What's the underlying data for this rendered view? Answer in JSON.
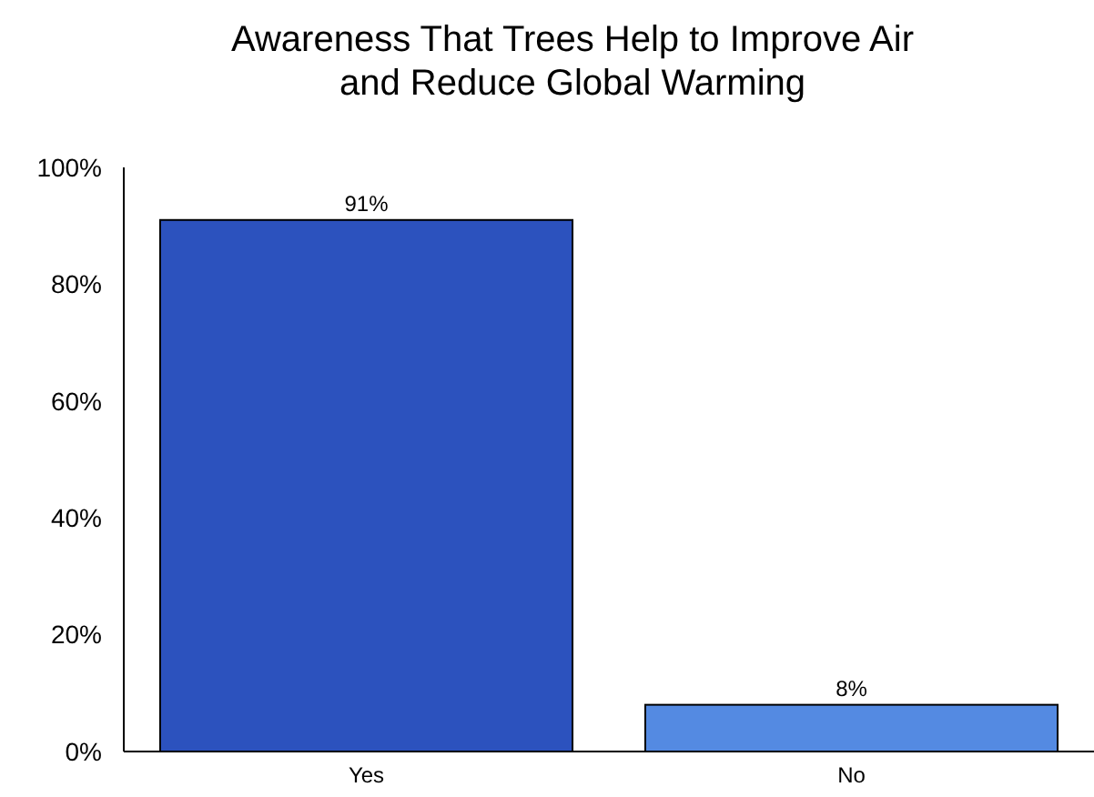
{
  "chart_data": {
    "type": "bar",
    "title": "Awareness That Trees Help to Improve Air and Reduce Global Warming",
    "categories": [
      "Yes",
      "No"
    ],
    "values": [
      91,
      8
    ],
    "colors": [
      "#2c52be",
      "#548ae2"
    ],
    "value_labels": [
      "91%",
      "8%"
    ],
    "ylim": [
      0,
      100
    ],
    "yticks": [
      {
        "value": 0,
        "label": "0%"
      },
      {
        "value": 20,
        "label": "20%"
      },
      {
        "value": 40,
        "label": "40%"
      },
      {
        "value": 60,
        "label": "60%"
      },
      {
        "value": 80,
        "label": "80%"
      },
      {
        "value": 100,
        "label": "100%"
      }
    ],
    "grid": false
  }
}
